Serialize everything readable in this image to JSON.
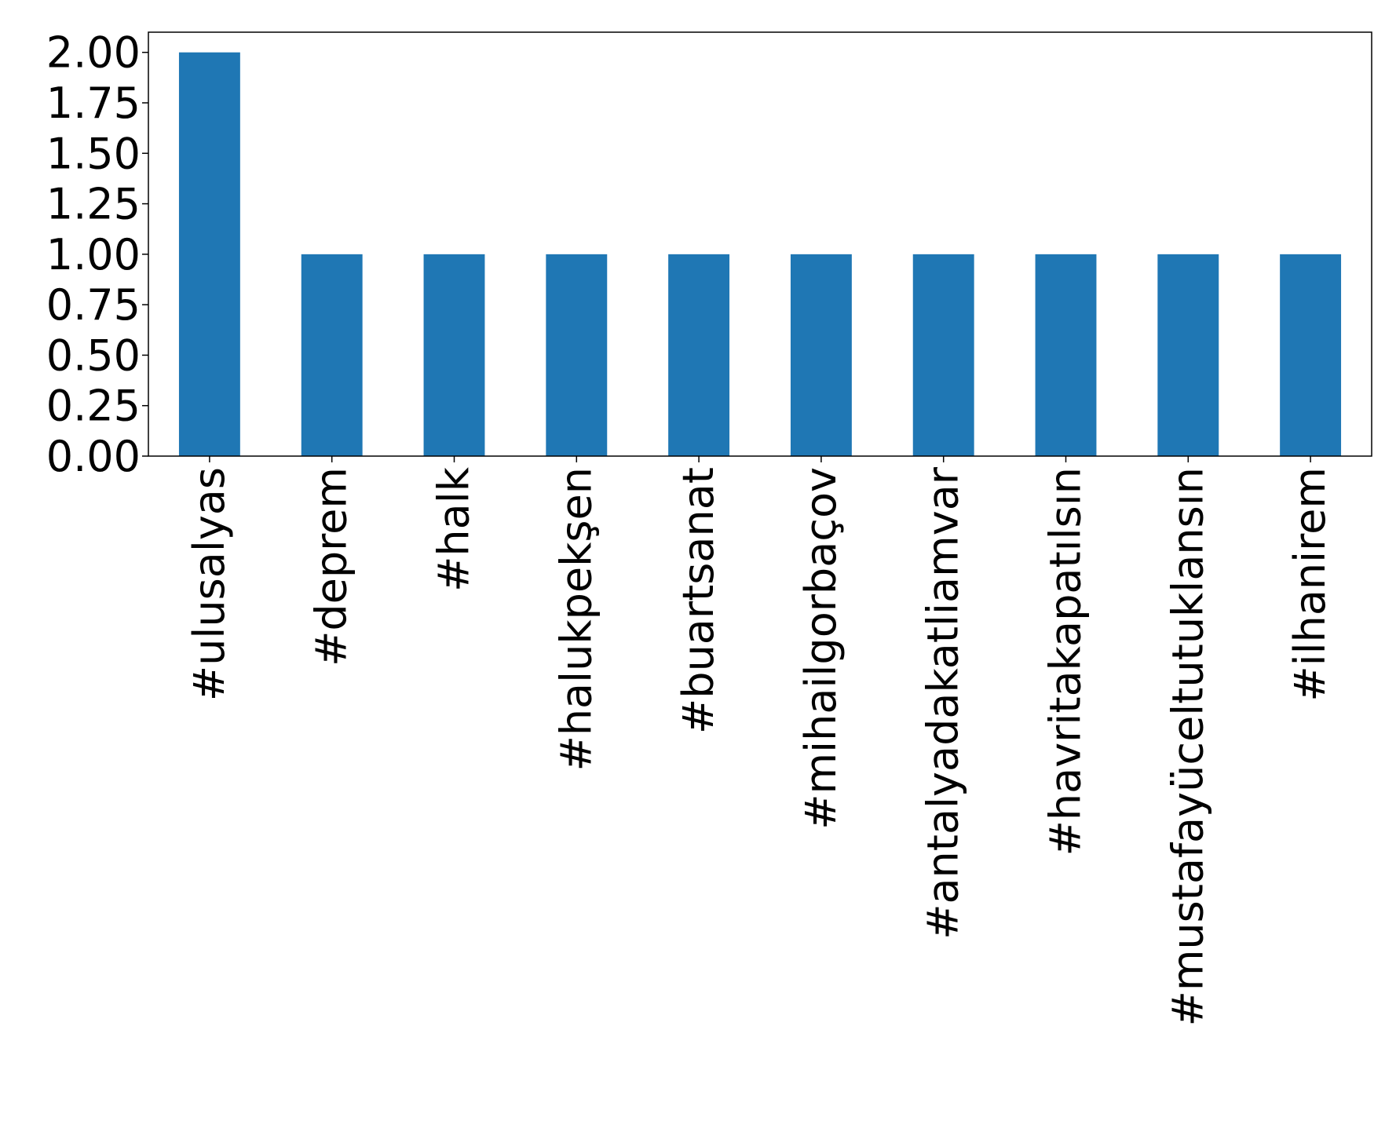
{
  "chart_data": {
    "type": "bar",
    "title": "",
    "xlabel": "",
    "ylabel": "",
    "categories": [
      "#ulusalyas",
      "#deprem",
      "#halk",
      "#halukpekşen",
      "#buartsanat",
      "#mihailgorbaçov",
      "#antalyadakatliamvar",
      "#havritakapatılsın",
      "#mustafayüceltutuklansın",
      "#ilhanirem"
    ],
    "values": [
      2,
      1,
      1,
      1,
      1,
      1,
      1,
      1,
      1,
      1
    ],
    "ylim": [
      0,
      2.1
    ],
    "yticks": [
      "0.00",
      "0.25",
      "0.50",
      "0.75",
      "1.00",
      "1.25",
      "1.50",
      "1.75",
      "2.00"
    ],
    "bar_color": "#1f77b4",
    "grid": false,
    "legend": "none"
  }
}
